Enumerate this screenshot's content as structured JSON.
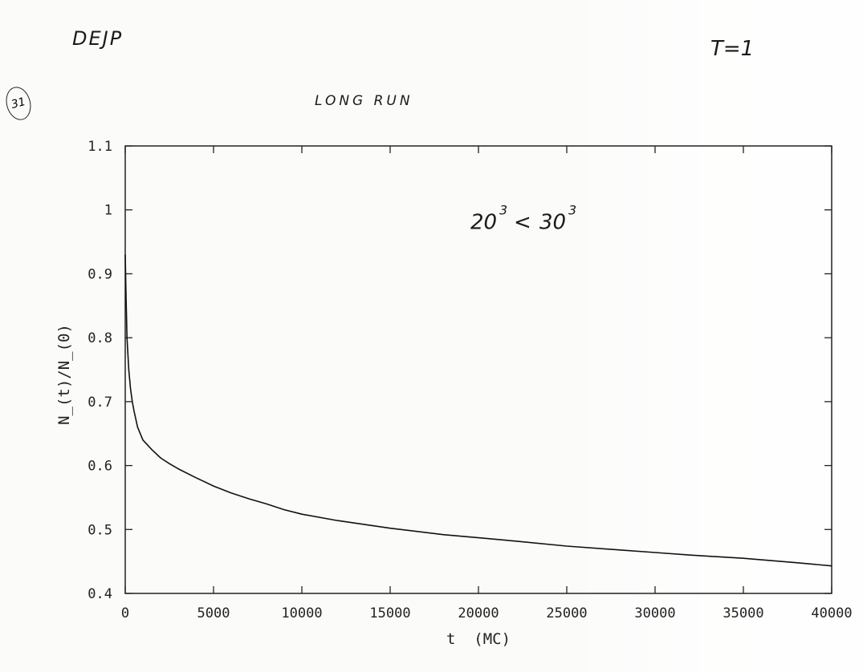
{
  "notes": {
    "top_left": "DEJP",
    "top_right": "T=1",
    "middle": "LONG RUN",
    "circled": "31"
  },
  "chart_data": {
    "type": "line",
    "xlabel": "t  (MC)",
    "ylabel": "N_(t)/N_(0)",
    "xlim": [
      0,
      40000
    ],
    "ylim": [
      0.4,
      1.1
    ],
    "x_ticks": [
      "0",
      "5000",
      "10000",
      "15000",
      "20000",
      "25000",
      "30000",
      "35000",
      "40000"
    ],
    "y_ticks": [
      "0.4",
      "0.5",
      "0.6",
      "0.7",
      "0.8",
      "0.9",
      "1",
      "1.1"
    ],
    "grid": false,
    "annotation": {
      "base1": "20",
      "exp1": "3",
      "sep": "<",
      "base2": "30",
      "exp2": "3",
      "position": [
        30000,
        0.97
      ]
    },
    "series": [
      {
        "x": [
          0,
          50,
          100,
          200,
          300,
          400,
          500,
          700,
          1000,
          1500,
          2000,
          2500,
          3000,
          4000,
          5000,
          6000,
          7000,
          8000,
          9000,
          10000,
          12000,
          15000,
          18000,
          20000,
          22000,
          25000,
          28000,
          30000,
          32000,
          35000,
          38000,
          40000
        ],
        "y": [
          0.93,
          0.86,
          0.8,
          0.75,
          0.72,
          0.7,
          0.685,
          0.66,
          0.64,
          0.625,
          0.612,
          0.603,
          0.595,
          0.581,
          0.568,
          0.557,
          0.548,
          0.54,
          0.531,
          0.524,
          0.514,
          0.502,
          0.492,
          0.487,
          0.482,
          0.474,
          0.468,
          0.464,
          0.46,
          0.455,
          0.448,
          0.443
        ]
      }
    ]
  }
}
